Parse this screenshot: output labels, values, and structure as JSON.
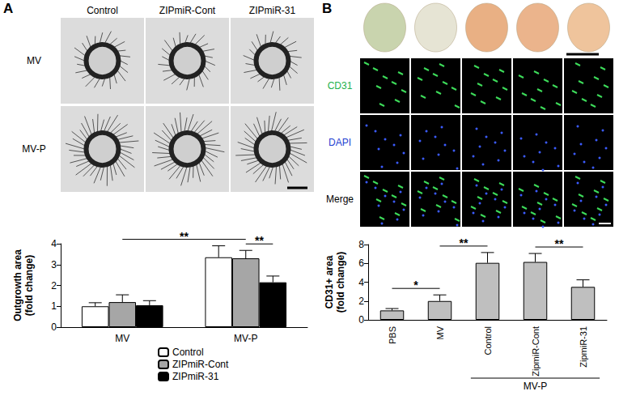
{
  "chart_data": [
    {
      "type": "bar",
      "categories": [
        "MV",
        "MV-P"
      ],
      "series": [
        {
          "name": "Control",
          "color": "#ffffff",
          "values": [
            1.0,
            3.35
          ],
          "errors": [
            0.17,
            0.55
          ]
        },
        {
          "name": "ZIPmiR-Cont",
          "color": "#a6a6a6",
          "values": [
            1.2,
            3.3
          ],
          "errors": [
            0.35,
            0.38
          ]
        },
        {
          "name": "ZIPmiR-31",
          "color": "#000000",
          "values": [
            1.05,
            2.15
          ],
          "errors": [
            0.22,
            0.3
          ]
        }
      ],
      "ylabel": "Outgrowth area\n(fold change)",
      "ylim": [
        0,
        4
      ],
      "yticks": [
        0,
        1,
        2,
        3,
        4
      ],
      "grid": false,
      "legend": "bottom",
      "comparisons": [
        {
          "a": {
            "category": "MV"
          },
          "b": {
            "category": "MV-P"
          },
          "label": "**"
        },
        {
          "a": {
            "category": "MV-P",
            "series": "ZIPmiR-Cont"
          },
          "b": {
            "category": "MV-P",
            "series": "ZIPmiR-31"
          },
          "label": "**"
        }
      ]
    },
    {
      "type": "bar",
      "categories": [
        "PBS",
        "MV",
        "Control",
        "ZipmiR-Cont",
        "ZipmiR-31"
      ],
      "values": [
        1.0,
        2.0,
        6.05,
        6.15,
        3.5
      ],
      "errors": [
        0.2,
        0.65,
        1.1,
        0.9,
        0.75
      ],
      "color": "#bfbfbf",
      "ylabel": "CD31+ area\n(fold change)",
      "ylim": [
        0,
        8
      ],
      "yticks": [
        0,
        2,
        4,
        6,
        8
      ],
      "grid": false,
      "category_groups": [
        {
          "label": "MV-P",
          "categories": [
            "Control",
            "ZipmiR-Cont",
            "ZipmiR-31"
          ]
        }
      ],
      "comparisons": [
        {
          "a": {
            "category": "PBS"
          },
          "b": {
            "category": "MV"
          },
          "label": "*"
        },
        {
          "a": {
            "category": "MV"
          },
          "b": {
            "category": "Control"
          },
          "label": "**"
        },
        {
          "a": {
            "category": "ZipmiR-Cont"
          },
          "b": {
            "category": "ZipmiR-31"
          },
          "label": "**"
        }
      ]
    }
  ],
  "figure": {
    "panels": [
      {
        "label": "A",
        "columns": [
          "Control",
          "ZIPmiR-Cont",
          "ZIPmiR-31"
        ],
        "rows": [
          "MV",
          "MV-P"
        ]
      },
      {
        "label": "B",
        "rows": [
          {
            "label": "CD31",
            "color": "#22b14c"
          },
          {
            "label": "DAPI",
            "color": "#1f3fd1"
          },
          {
            "label": "Merge",
            "color": "#000000"
          }
        ]
      }
    ]
  }
}
